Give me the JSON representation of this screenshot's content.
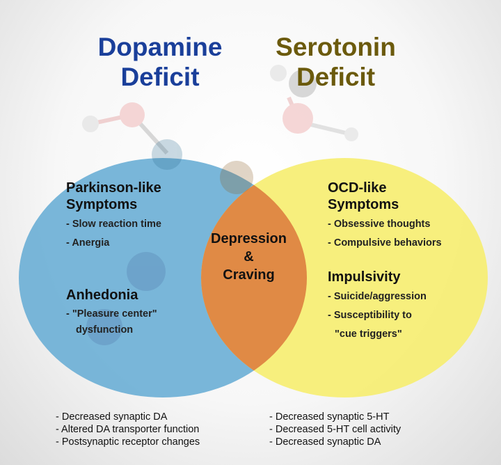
{
  "titles": {
    "dopamine": "Dopamine\nDeficit",
    "serotonin": "Serotonin\nDeficit"
  },
  "colors": {
    "dopamine_title": "#1a3f9a",
    "serotonin_title": "#6b5a0c",
    "dopamine_circle": "#6eb0d6",
    "serotonin_circle": "#f6ee72",
    "overlap": "#e08a45"
  },
  "left": {
    "group1": {
      "heading": "Parkinson-like\nSymptoms",
      "items": [
        "- Slow reaction time",
        "- Anergia"
      ]
    },
    "group2": {
      "heading": "Anhedonia",
      "items": [
        "- \"Pleasure center\"",
        "dysfunction"
      ]
    }
  },
  "center": {
    "line1": "Depression",
    "line2": "&",
    "line3": "Craving"
  },
  "right": {
    "group1": {
      "heading": "OCD-like\nSymptoms",
      "items": [
        "- Obsessive thoughts",
        "- Compulsive behaviors"
      ]
    },
    "group2": {
      "heading": "Impulsivity",
      "items": [
        "- Suicide/aggression",
        "- Susceptibility to",
        "\"cue triggers\""
      ]
    }
  },
  "footer": {
    "left": [
      "- Decreased synaptic DA",
      "- Altered DA transporter function",
      "- Postsynaptic receptor changes"
    ],
    "right": [
      "- Decreased synaptic 5-HT",
      "- Decreased 5-HT cell activity",
      "- Decreased synaptic DA"
    ]
  }
}
